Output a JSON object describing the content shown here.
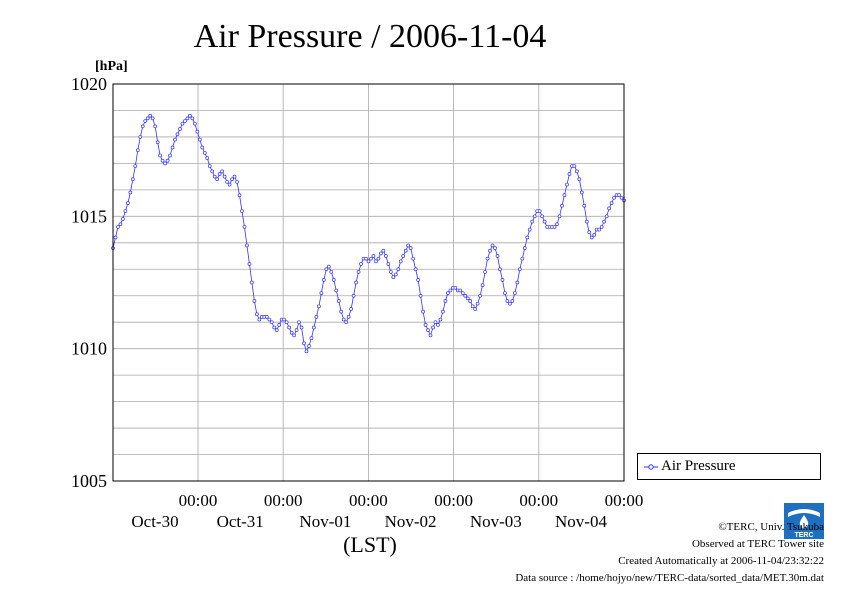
{
  "chart_data": {
    "type": "line",
    "title": "Air Pressure / 2006-11-04",
    "ylabel": "[hPa]",
    "xlabel": "(LST)",
    "ylim": [
      1005,
      1020
    ],
    "y_ticks": [
      1005,
      1010,
      1015,
      1020
    ],
    "x_ticks": [
      {
        "time": "00:00",
        "date": "Oct-30"
      },
      {
        "time": "00:00",
        "date": "Oct-31"
      },
      {
        "time": "00:00",
        "date": "Nov-01"
      },
      {
        "time": "00:00",
        "date": "Nov-02"
      },
      {
        "time": "00:00",
        "date": "Nov-03"
      },
      {
        "time": "00:00",
        "date": "Nov-04"
      }
    ],
    "grid": true,
    "legend_position": "right-bottom",
    "series": [
      {
        "name": "Air Pressure",
        "color": "#3333ff",
        "values": [
          1013.8,
          1014.2,
          1014.6,
          1014.7,
          1014.9,
          1015.2,
          1015.5,
          1015.9,
          1016.4,
          1016.9,
          1017.5,
          1018.0,
          1018.4,
          1018.6,
          1018.7,
          1018.8,
          1018.7,
          1018.4,
          1017.8,
          1017.3,
          1017.1,
          1017.0,
          1017.1,
          1017.3,
          1017.6,
          1017.9,
          1018.1,
          1018.3,
          1018.5,
          1018.6,
          1018.7,
          1018.8,
          1018.7,
          1018.5,
          1018.2,
          1017.9,
          1017.6,
          1017.4,
          1017.2,
          1016.9,
          1016.7,
          1016.5,
          1016.4,
          1016.6,
          1016.7,
          1016.5,
          1016.3,
          1016.2,
          1016.4,
          1016.5,
          1016.3,
          1015.8,
          1015.2,
          1014.6,
          1013.9,
          1013.2,
          1012.5,
          1011.8,
          1011.3,
          1011.1,
          1011.2,
          1011.2,
          1011.2,
          1011.1,
          1011.0,
          1010.8,
          1010.7,
          1010.9,
          1011.1,
          1011.1,
          1011.0,
          1010.8,
          1010.6,
          1010.5,
          1010.7,
          1011.0,
          1010.8,
          1010.2,
          1009.9,
          1010.1,
          1010.4,
          1010.8,
          1011.2,
          1011.6,
          1012.1,
          1012.6,
          1013.0,
          1013.1,
          1012.9,
          1012.6,
          1012.2,
          1011.8,
          1011.4,
          1011.1,
          1011.0,
          1011.2,
          1011.5,
          1012.0,
          1012.5,
          1012.9,
          1013.2,
          1013.4,
          1013.4,
          1013.3,
          1013.4,
          1013.5,
          1013.3,
          1013.4,
          1013.6,
          1013.7,
          1013.5,
          1013.2,
          1012.9,
          1012.7,
          1012.8,
          1013.0,
          1013.3,
          1013.5,
          1013.7,
          1013.9,
          1013.8,
          1013.4,
          1013.0,
          1012.6,
          1012.0,
          1011.4,
          1010.9,
          1010.7,
          1010.5,
          1010.8,
          1011.0,
          1010.9,
          1011.1,
          1011.4,
          1011.8,
          1012.1,
          1012.2,
          1012.3,
          1012.3,
          1012.2,
          1012.2,
          1012.1,
          1012.0,
          1011.9,
          1011.8,
          1011.6,
          1011.5,
          1011.7,
          1012.0,
          1012.4,
          1012.9,
          1013.4,
          1013.7,
          1013.9,
          1013.8,
          1013.5,
          1013.0,
          1012.6,
          1012.1,
          1011.8,
          1011.7,
          1011.8,
          1012.1,
          1012.5,
          1013.0,
          1013.4,
          1013.8,
          1014.2,
          1014.5,
          1014.8,
          1015.0,
          1015.2,
          1015.2,
          1015.0,
          1014.8,
          1014.6,
          1014.6,
          1014.6,
          1014.6,
          1014.7,
          1015.0,
          1015.4,
          1015.8,
          1016.2,
          1016.6,
          1016.9,
          1016.9,
          1016.7,
          1016.4,
          1015.9,
          1015.4,
          1014.8,
          1014.4,
          1014.2,
          1014.3,
          1014.5,
          1014.5,
          1014.6,
          1014.8,
          1015.0,
          1015.3,
          1015.5,
          1015.7,
          1015.8,
          1015.8,
          1015.7,
          1015.6
        ]
      }
    ]
  },
  "footer": {
    "copyright": "©TERC, Univ. Tsukuba",
    "observed": "Observed at TERC Tower site",
    "created": "Created Automatically at 2006-11-04/23:32:22",
    "source": "Data source : /home/hojyo/new/TERC-data/sorted_data/MET.30m.dat"
  },
  "logo": {
    "text": "TERC",
    "icon": "terc-logo-icon"
  }
}
